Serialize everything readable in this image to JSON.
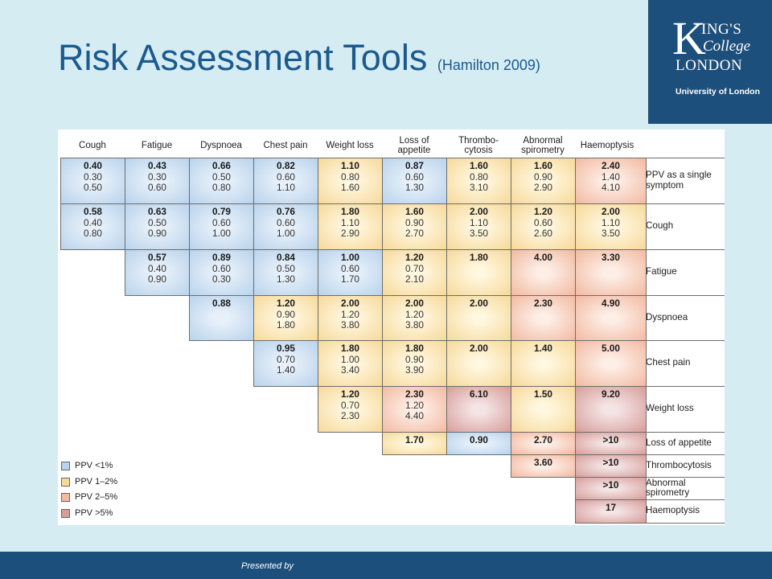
{
  "title": "Risk Assessment Tools",
  "title_sub": "(Hamilton 2009)",
  "logo": {
    "k": "K",
    "ings": "ING'S",
    "college": "College",
    "london": "LONDON",
    "university": "University of London"
  },
  "footer_text": "Presented by",
  "columns": [
    "Cough",
    "Fatigue",
    "Dyspnoea",
    "Chest pain",
    "Weight loss",
    "Loss of appetite",
    "Thrombo- cytosis",
    "Abnormal spirometry",
    "Haemoptysis"
  ],
  "row_labels": [
    "PPV as a single symptom",
    "Cough",
    "Fatigue",
    "Dyspnoea",
    "Chest pain",
    "Weight loss",
    "Loss of appetite",
    "Thrombocytosis",
    "Abnormal spirometry",
    "Haemoptysis"
  ],
  "legend": [
    {
      "label": "PPV <1%",
      "color": "#b9d3ec"
    },
    {
      "label": "PPV 1–2%",
      "color": "#f7d99a"
    },
    {
      "label": "PPV 2–5%",
      "color": "#f3b9a1"
    },
    {
      "label": "PPV >5%",
      "color": "#d79d9b"
    }
  ],
  "rows": [
    {
      "start": 0,
      "cells": [
        {
          "values": [
            "0.40",
            "0.30",
            "0.50"
          ],
          "cat": 1
        },
        {
          "values": [
            "0.43",
            "0.30",
            "0.60"
          ],
          "cat": 1
        },
        {
          "values": [
            "0.66",
            "0.50",
            "0.80"
          ],
          "cat": 1
        },
        {
          "values": [
            "0.82",
            "0.60",
            "1.10"
          ],
          "cat": 1
        },
        {
          "values": [
            "1.10",
            "0.80",
            "1.60"
          ],
          "cat": 2
        },
        {
          "values": [
            "0.87",
            "0.60",
            "1.30"
          ],
          "cat": 1
        },
        {
          "values": [
            "1.60",
            "0.80",
            "3.10"
          ],
          "cat": 2
        },
        {
          "values": [
            "1.60",
            "0.90",
            "2.90"
          ],
          "cat": 2
        },
        {
          "values": [
            "2.40",
            "1.40",
            "4.10"
          ],
          "cat": 3
        }
      ]
    },
    {
      "start": 0,
      "cells": [
        {
          "values": [
            "0.58",
            "0.40",
            "0.80"
          ],
          "cat": 1
        },
        {
          "values": [
            "0.63",
            "0.50",
            "0.90"
          ],
          "cat": 1
        },
        {
          "values": [
            "0.79",
            "0.60",
            "1.00"
          ],
          "cat": 1
        },
        {
          "values": [
            "0.76",
            "0.60",
            "1.00"
          ],
          "cat": 1
        },
        {
          "values": [
            "1.80",
            "1.10",
            "2.90"
          ],
          "cat": 2
        },
        {
          "values": [
            "1.60",
            "0.90",
            "2.70"
          ],
          "cat": 2
        },
        {
          "values": [
            "2.00",
            "1.10",
            "3.50"
          ],
          "cat": 2
        },
        {
          "values": [
            "1.20",
            "0.60",
            "2.60"
          ],
          "cat": 2
        },
        {
          "values": [
            "2.00",
            "1.10",
            "3.50"
          ],
          "cat": 2
        }
      ]
    },
    {
      "start": 1,
      "cells": [
        {
          "values": [
            "0.57",
            "0.40",
            "0.90"
          ],
          "cat": 1
        },
        {
          "values": [
            "0.89",
            "0.60",
            "0.30"
          ],
          "cat": 1
        },
        {
          "values": [
            "0.84",
            "0.50",
            "1.30"
          ],
          "cat": 1
        },
        {
          "values": [
            "1.00",
            "0.60",
            "1.70"
          ],
          "cat": 1
        },
        {
          "values": [
            "1.20",
            "0.70",
            "2.10"
          ],
          "cat": 2
        },
        {
          "values": [
            "1.80"
          ],
          "cat": 2
        },
        {
          "values": [
            "4.00"
          ],
          "cat": 3
        },
        {
          "values": [
            "3.30"
          ],
          "cat": 3
        }
      ]
    },
    {
      "start": 2,
      "cells": [
        {
          "values": [
            "0.88"
          ],
          "cat": 1
        },
        {
          "values": [
            "1.20",
            "0.90",
            "1.80"
          ],
          "cat": 2
        },
        {
          "values": [
            "2.00",
            "1.20",
            "3.80"
          ],
          "cat": 2
        },
        {
          "values": [
            "2.00",
            "1.20",
            "3.80"
          ],
          "cat": 2
        },
        {
          "values": [
            "2.00"
          ],
          "cat": 2
        },
        {
          "values": [
            "2.30"
          ],
          "cat": 3
        },
        {
          "values": [
            "4.90"
          ],
          "cat": 3
        }
      ]
    },
    {
      "start": 3,
      "cells": [
        {
          "values": [
            "0.95",
            "0.70",
            "1.40"
          ],
          "cat": 1
        },
        {
          "values": [
            "1.80",
            "1.00",
            "3.40"
          ],
          "cat": 2
        },
        {
          "values": [
            "1.80",
            "0.90",
            "3.90"
          ],
          "cat": 2
        },
        {
          "values": [
            "2.00"
          ],
          "cat": 2
        },
        {
          "values": [
            "1.40"
          ],
          "cat": 2
        },
        {
          "values": [
            "5.00"
          ],
          "cat": 3
        }
      ]
    },
    {
      "start": 4,
      "cells": [
        {
          "values": [
            "1.20",
            "0.70",
            "2.30"
          ],
          "cat": 2
        },
        {
          "values": [
            "2.30",
            "1.20",
            "4.40"
          ],
          "cat": 3
        },
        {
          "values": [
            "6.10"
          ],
          "cat": 4
        },
        {
          "values": [
            "1.50"
          ],
          "cat": 2
        },
        {
          "values": [
            "9.20"
          ],
          "cat": 4
        }
      ]
    },
    {
      "start": 5,
      "cells": [
        {
          "values": [
            "1.70"
          ],
          "cat": 2
        },
        {
          "values": [
            "0.90"
          ],
          "cat": 1
        },
        {
          "values": [
            "2.70"
          ],
          "cat": 3
        },
        {
          "values": [
            ">10"
          ],
          "cat": 4
        }
      ]
    },
    {
      "start": 7,
      "cells": [
        {
          "values": [
            "3.60"
          ],
          "cat": 3
        },
        {
          "values": [
            ">10"
          ],
          "cat": 4
        }
      ]
    },
    {
      "start": 8,
      "cells": [
        {
          "values": [
            ">10"
          ],
          "cat": 4
        }
      ]
    },
    {
      "start": 8,
      "cells": [
        {
          "values": [
            "17"
          ],
          "cat": 4
        }
      ]
    }
  ]
}
